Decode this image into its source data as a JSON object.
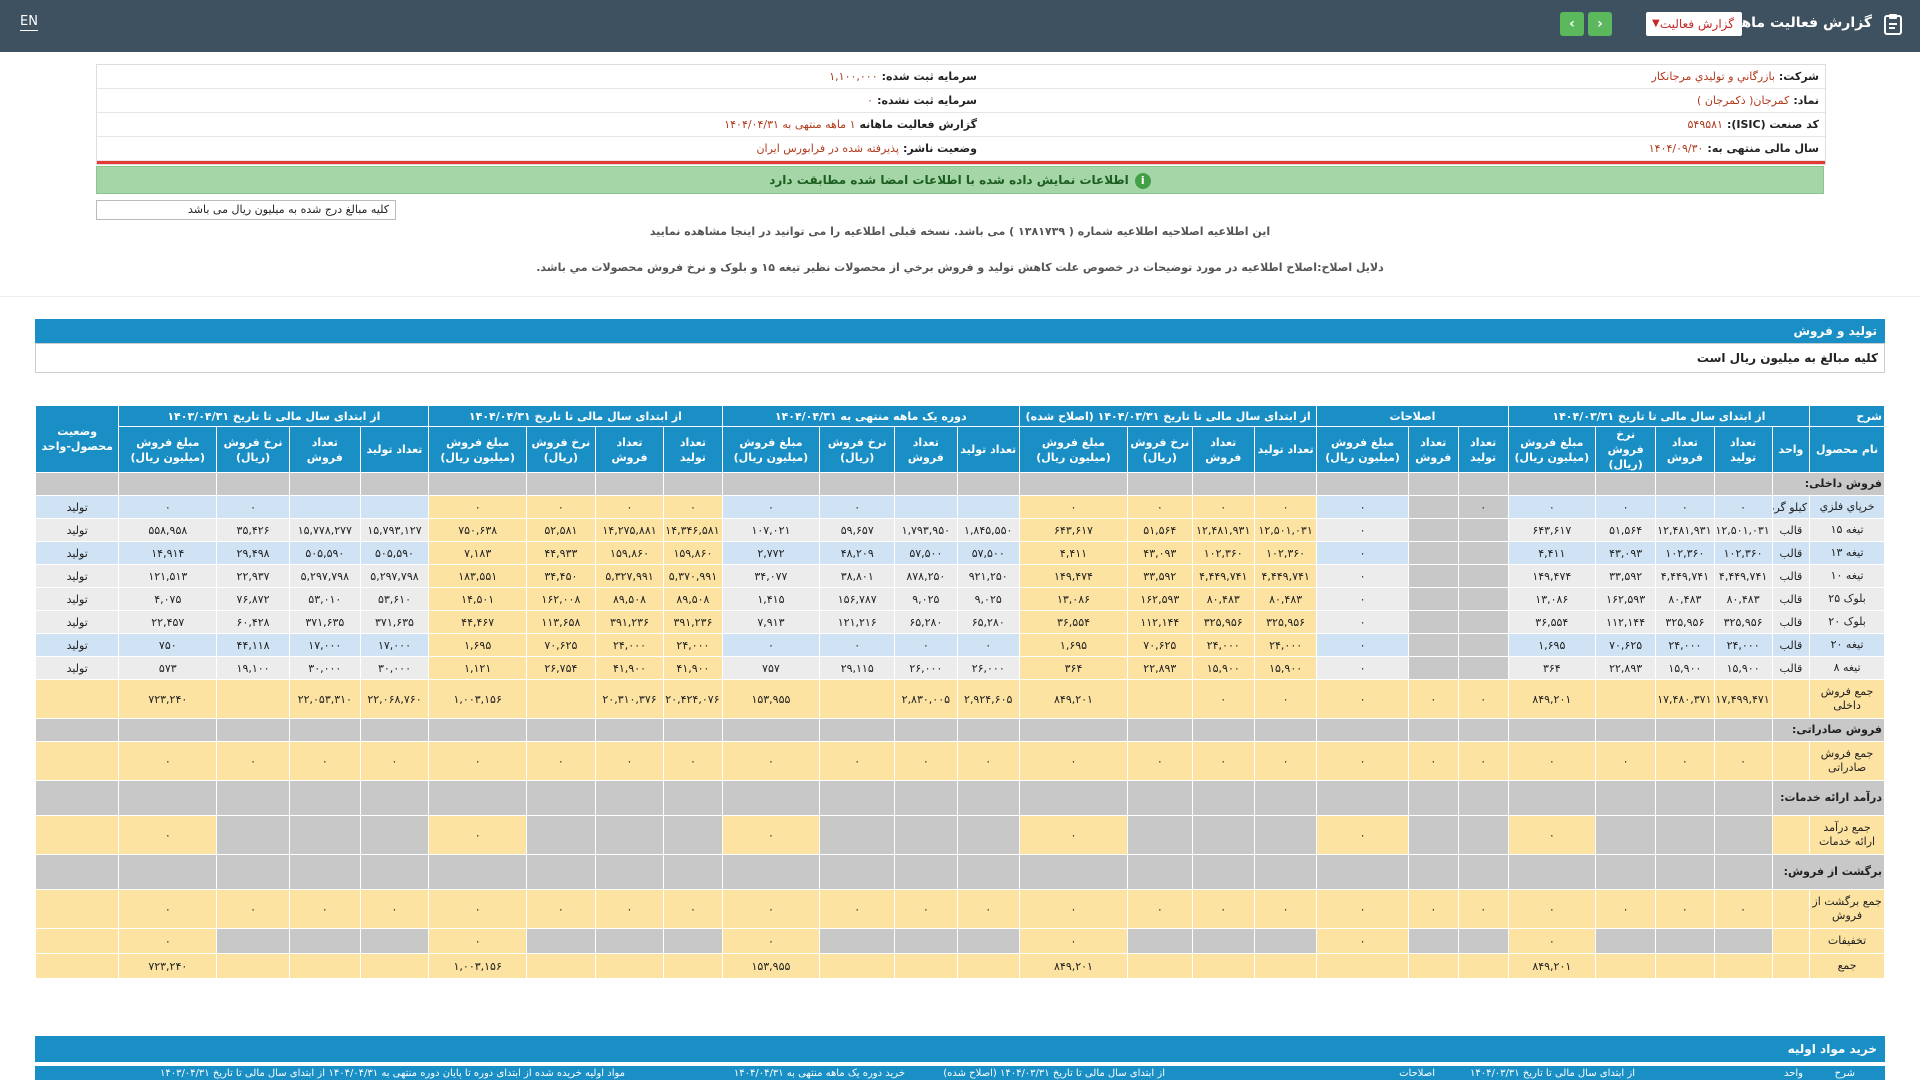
{
  "topbar": {
    "lang": "EN",
    "title": "گزارش فعالیت ماهانه",
    "select_value": "گزارش فعالیت",
    "prev_icon": "chevron-left-icon",
    "next_icon": "chevron-right-icon",
    "clipboard_icon": "clipboard-icon"
  },
  "info": {
    "company_label": "شرکت:",
    "company_value": "بازرگاني و توليدي مرجانکار",
    "symbol_label": "نماد:",
    "symbol_value": "کمرجان( ذکمرجان )",
    "isic_label": "کد صنعت (ISIC):",
    "isic_value": "۵۴۹۵۸۱",
    "fy_label": "سال مالی منتهی به:",
    "fy_value": "۱۴۰۴/۰۹/۳۰",
    "cap_reg_label": "سرمایه ثبت شده:",
    "cap_reg_value": "۱,۱۰۰,۰۰۰",
    "cap_unreg_label": "سرمایه ثبت نشده:",
    "cap_unreg_value": "۰",
    "report_label": "گزارش فعالیت ماهانه",
    "report_value": "۱ ماهه منتهی به ۱۴۰۴/۰۴/۳۱",
    "status_label": "وضعیت ناشر:",
    "status_value": "پذیرفته شده در فرابورس ایران"
  },
  "notice": "اطلاعات نمایش داده شده با اطلاعات امضا شده مطابقت دارد",
  "unit_note": "کلیه مبالغ درج شده به میلیون ریال می باشد",
  "message1": "این اطلاعیه اصلاحیه اطلاعیه شماره ( ۱۳۸۱۷۳۹ ) می باشد. نسخه قبلی اطلاعیه را می توانید در اینجا مشاهده نمایید",
  "message2": "دلایل اصلاح:اصلاح اطلاعیه در مورد توضیحات در خصوص علت کاهش تولید و فروش برخي از محصولات نظیر تیغه ۱۵ و بلوک و نرخ فروش محصولات مي باشد.",
  "section1": {
    "title": "تولید و فروش",
    "subtitle": "کلیه مبالغ به میلیون ریال است"
  },
  "table": {
    "groups": [
      "شرح",
      "از ابتدای سال مالی تا تاریخ ۱۴۰۴/۰۳/۳۱",
      "اصلاحات",
      "از ابتدای سال مالی تا تاریخ ۱۴۰۴/۰۳/۳۱ (اصلاح شده)",
      "دوره یک ماهه منتهی به ۱۴۰۴/۰۴/۳۱",
      "از ابتدای سال مالی تا تاریخ ۱۴۰۴/۰۴/۳۱",
      "از ابتدای سال مالی تا تاریخ ۱۴۰۳/۰۴/۳۱",
      "وضعیت محصول-واحد"
    ],
    "subheads": [
      "نام محصول",
      "واحد",
      "تعداد تولید",
      "تعداد فروش",
      "نرخ فروش (ریال)",
      "مبلغ فروش (میلیون ریال)",
      "تعداد تولید",
      "تعداد فروش",
      "مبلغ فروش (میلیون ریال)",
      "تعداد تولید",
      "تعداد فروش",
      "نرخ فروش (ریال)",
      "مبلغ فروش (میلیون ریال)",
      "تعداد تولید",
      "تعداد فروش",
      "نرخ فروش (ریال)",
      "مبلغ فروش (میلیون ریال)",
      "تعداد تولید",
      "تعداد فروش",
      "نرخ فروش (ریال)",
      "مبلغ فروش (میلیون ریال)",
      "تعداد تولید",
      "تعداد فروش",
      "نرخ فروش (ریال)",
      "مبلغ فروش (میلیون ریال)"
    ],
    "cat_domestic": "فروش داخلی:",
    "rows": [
      {
        "c": [
          "خرپاي فلزي",
          "کيلو گرم",
          "۰",
          "۰",
          "۰",
          "۰",
          "۰",
          "",
          "۰",
          "۰",
          "۰",
          "۰",
          "۰",
          "",
          "",
          "۰",
          "۰",
          "۰",
          "۰",
          "۰",
          "۰",
          "",
          "",
          "۰",
          "۰",
          "تولید"
        ]
      },
      {
        "c": [
          "تیغه ۱۵",
          "قالب",
          "۱۲,۵۰۱,۰۳۱",
          "۱۲,۴۸۱,۹۳۱",
          "۵۱,۵۶۴",
          "۶۴۳,۶۱۷",
          "",
          "",
          "۰",
          "۱۲,۵۰۱,۰۳۱",
          "۱۲,۴۸۱,۹۳۱",
          "۵۱,۵۶۴",
          "۶۴۳,۶۱۷",
          "۱,۸۴۵,۵۵۰",
          "۱,۷۹۳,۹۵۰",
          "۵۹,۶۵۷",
          "۱۰۷,۰۲۱",
          "۱۴,۳۴۶,۵۸۱",
          "۱۴,۲۷۵,۸۸۱",
          "۵۲,۵۸۱",
          "۷۵۰,۶۳۸",
          "۱۵,۷۹۳,۱۲۷",
          "۱۵,۷۷۸,۲۷۷",
          "۳۵,۴۲۶",
          "۵۵۸,۹۵۸",
          "تولید"
        ]
      },
      {
        "c": [
          "تیغه ۱۳",
          "قالب",
          "۱۰۲,۳۶۰",
          "۱۰۲,۳۶۰",
          "۴۳,۰۹۳",
          "۴,۴۱۱",
          "",
          "",
          "۰",
          "۱۰۲,۳۶۰",
          "۱۰۲,۳۶۰",
          "۴۳,۰۹۳",
          "۴,۴۱۱",
          "۵۷,۵۰۰",
          "۵۷,۵۰۰",
          "۴۸,۲۰۹",
          "۲,۷۷۲",
          "۱۵۹,۸۶۰",
          "۱۵۹,۸۶۰",
          "۴۴,۹۳۳",
          "۷,۱۸۳",
          "۵۰۵,۵۹۰",
          "۵۰۵,۵۹۰",
          "۲۹,۴۹۸",
          "۱۴,۹۱۴",
          "تولید"
        ]
      },
      {
        "c": [
          "تیغه ۱۰",
          "قالب",
          "۴,۴۴۹,۷۴۱",
          "۴,۴۴۹,۷۴۱",
          "۳۳,۵۹۲",
          "۱۴۹,۴۷۴",
          "",
          "",
          "۰",
          "۴,۴۴۹,۷۴۱",
          "۴,۴۴۹,۷۴۱",
          "۳۳,۵۹۲",
          "۱۴۹,۴۷۴",
          "۹۲۱,۲۵۰",
          "۸۷۸,۲۵۰",
          "۳۸,۸۰۱",
          "۳۴,۰۷۷",
          "۵,۳۷۰,۹۹۱",
          "۵,۳۲۷,۹۹۱",
          "۳۴,۴۵۰",
          "۱۸۳,۵۵۱",
          "۵,۲۹۷,۷۹۸",
          "۵,۲۹۷,۷۹۸",
          "۲۲,۹۳۷",
          "۱۲۱,۵۱۳",
          "تولید"
        ]
      },
      {
        "c": [
          "بلوک ۲۵",
          "قالب",
          "۸۰,۴۸۳",
          "۸۰,۴۸۳",
          "۱۶۲,۵۹۳",
          "۱۳,۰۸۶",
          "",
          "",
          "۰",
          "۸۰,۴۸۳",
          "۸۰,۴۸۳",
          "۱۶۲,۵۹۳",
          "۱۳,۰۸۶",
          "۹,۰۲۵",
          "۹,۰۲۵",
          "۱۵۶,۷۸۷",
          "۱,۴۱۵",
          "۸۹,۵۰۸",
          "۸۹,۵۰۸",
          "۱۶۲,۰۰۸",
          "۱۴,۵۰۱",
          "۵۳,۶۱۰",
          "۵۳,۰۱۰",
          "۷۶,۸۷۲",
          "۴,۰۷۵",
          "تولید"
        ]
      },
      {
        "c": [
          "بلوک ۲۰",
          "قالب",
          "۳۲۵,۹۵۶",
          "۳۲۵,۹۵۶",
          "۱۱۲,۱۴۴",
          "۳۶,۵۵۴",
          "",
          "",
          "۰",
          "۳۲۵,۹۵۶",
          "۳۲۵,۹۵۶",
          "۱۱۲,۱۴۴",
          "۳۶,۵۵۴",
          "۶۵,۲۸۰",
          "۶۵,۲۸۰",
          "۱۲۱,۲۱۶",
          "۷,۹۱۳",
          "۳۹۱,۲۳۶",
          "۳۹۱,۲۳۶",
          "۱۱۳,۶۵۸",
          "۴۴,۴۶۷",
          "۳۷۱,۶۳۵",
          "۳۷۱,۶۳۵",
          "۶۰,۴۲۸",
          "۲۲,۴۵۷",
          "تولید"
        ]
      },
      {
        "c": [
          "تیغه ۲۰",
          "قالب",
          "۲۴,۰۰۰",
          "۲۴,۰۰۰",
          "۷۰,۶۲۵",
          "۱,۶۹۵",
          "",
          "",
          "۰",
          "۲۴,۰۰۰",
          "۲۴,۰۰۰",
          "۷۰,۶۲۵",
          "۱,۶۹۵",
          "۰",
          "۰",
          "۰",
          "۰",
          "۲۴,۰۰۰",
          "۲۴,۰۰۰",
          "۷۰,۶۲۵",
          "۱,۶۹۵",
          "۱۷,۰۰۰",
          "۱۷,۰۰۰",
          "۴۴,۱۱۸",
          "۷۵۰",
          "تولید"
        ]
      },
      {
        "c": [
          "تیغه ۸",
          "قالب",
          "۱۵,۹۰۰",
          "۱۵,۹۰۰",
          "۲۲,۸۹۳",
          "۳۶۴",
          "",
          "",
          "۰",
          "۱۵,۹۰۰",
          "۱۵,۹۰۰",
          "۲۲,۸۹۳",
          "۳۶۴",
          "۲۶,۰۰۰",
          "۲۶,۰۰۰",
          "۲۹,۱۱۵",
          "۷۵۷",
          "۴۱,۹۰۰",
          "۴۱,۹۰۰",
          "۲۶,۷۵۴",
          "۱,۱۲۱",
          "۳۰,۰۰۰",
          "۳۰,۰۰۰",
          "۱۹,۱۰۰",
          "۵۷۳",
          "تولید"
        ]
      }
    ],
    "total_domestic": {
      "c": [
        "جمع فروش داخلی",
        "",
        "۱۷,۴۹۹,۴۷۱",
        "۱۷,۴۸۰,۳۷۱",
        "",
        "۸۴۹,۲۰۱",
        "۰",
        "۰",
        "۰",
        "۰",
        "۰",
        "",
        "۸۴۹,۲۰۱",
        "۲,۹۲۴,۶۰۵",
        "۲,۸۳۰,۰۰۵",
        "",
        "۱۵۳,۹۵۵",
        "۲۰,۴۲۴,۰۷۶",
        "۲۰,۳۱۰,۳۷۶",
        "",
        "۱,۰۰۳,۱۵۶",
        "۲۲,۰۶۸,۷۶۰",
        "۲۲,۰۵۳,۳۱۰",
        "",
        "۷۲۳,۲۴۰",
        ""
      ]
    },
    "cat_export": "فروش صادراتی:",
    "total_export": {
      "c": [
        "جمع فروش صادراتی",
        "",
        "۰",
        "۰",
        "۰",
        "۰",
        "۰",
        "۰",
        "۰",
        "۰",
        "۰",
        "۰",
        "۰",
        "۰",
        "۰",
        "۰",
        "۰",
        "۰",
        "۰",
        "۰",
        "۰",
        "۰",
        "۰",
        "۰",
        "۰",
        ""
      ]
    },
    "cat_services": "درآمد ارائه خدمات:",
    "total_services": {
      "c": [
        "جمع درآمد ارائه خدمات",
        "",
        "",
        "",
        "",
        "۰",
        "",
        "",
        "۰",
        "",
        "",
        "",
        "۰",
        "",
        "",
        "",
        "۰",
        "",
        "",
        "",
        "۰",
        "",
        "",
        "",
        "۰",
        ""
      ]
    },
    "cat_returns": "برگشت از فروش:",
    "total_returns": {
      "c": [
        "جمع برگشت از فروش",
        "",
        "۰",
        "۰",
        "۰",
        "۰",
        "۰",
        "۰",
        "۰",
        "۰",
        "۰",
        "۰",
        "۰",
        "۰",
        "۰",
        "۰",
        "۰",
        "۰",
        "۰",
        "۰",
        "۰",
        "۰",
        "۰",
        "۰",
        "۰",
        ""
      ]
    },
    "discounts": {
      "c": [
        "تخفیفات",
        "",
        "",
        "",
        "",
        "۰",
        "",
        "",
        "۰",
        "",
        "",
        "",
        "۰",
        "",
        "",
        "",
        "۰",
        "",
        "",
        "",
        "۰",
        "",
        "",
        "",
        "۰",
        ""
      ]
    },
    "grand_total": {
      "c": [
        "جمع",
        "",
        "",
        "",
        "",
        "۸۴۹,۲۰۱",
        "",
        "",
        "",
        "",
        "",
        "",
        "۸۴۹,۲۰۱",
        "",
        "",
        "",
        "۱۵۳,۹۵۵",
        "",
        "",
        "",
        "۱,۰۰۳,۱۵۶",
        "",
        "",
        "",
        "۷۲۳,۲۴۰",
        ""
      ]
    }
  },
  "section2": {
    "title": "خرید مواد اولیه",
    "heads": [
      "شرح",
      "واحد",
      "از ابتدای سال مالی تا تاریخ ۱۴۰۴/۰۳/۳۱",
      "اصلاحات",
      "از ابتدای سال مالی تا تاریخ ۱۴۰۴/۰۳/۳۱ (اصلاح شده)",
      "خرید دوره یک ماهه منتهی به ۱۴۰۴/۰۴/۳۱",
      "مواد اولیه خریده شده از ابتدای دوره تا پایان دوره منتهی به ۱۴۰۴/۰۴/۳۱",
      "از ابتدای سال مالی تا تاریخ ۱۴۰۳/۰۴/۳۱"
    ]
  }
}
